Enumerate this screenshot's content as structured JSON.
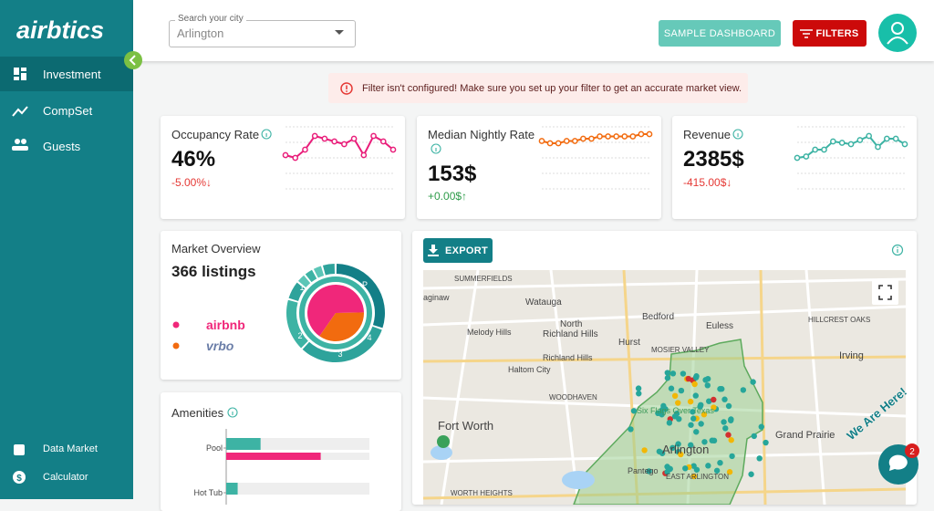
{
  "logo": "airbtics",
  "nav": [
    "Investment",
    "CompSet",
    "Guests"
  ],
  "nav_bottom": [
    "Data Market",
    "Calculator"
  ],
  "search": {
    "label": "Search your city",
    "value": "Arlington"
  },
  "buttons": {
    "sample": "SAMPLE DASHBOARD",
    "filters": "FILTERS",
    "export": "EXPORT"
  },
  "alert": "Filter isn't configured! Make sure you set up your filter to get an accurate market view.",
  "cards": [
    {
      "title": "Occupancy Rate",
      "value": "46%",
      "change": "-5.00%↓",
      "change_color": "#e53935",
      "color": "#e91e7a",
      "spark": [
        40,
        39,
        42,
        47,
        46,
        45,
        44,
        46,
        40,
        47,
        45,
        42
      ]
    },
    {
      "title": "Median Nightly Rate",
      "value": "153$",
      "change": "+0.00$↑",
      "change_color": "#2e9c4a",
      "color": "#f26b0f",
      "spark": [
        151,
        150,
        150,
        151,
        151,
        152,
        152,
        153,
        153,
        153,
        153,
        153,
        154,
        154
      ]
    },
    {
      "title": "Revenue",
      "value": "2385$",
      "change": "-415.00$↓",
      "change_color": "#e53935",
      "color": "#3db3a4",
      "spark": [
        2300,
        2310,
        2360,
        2360,
        2420,
        2410,
        2400,
        2430,
        2460,
        2380,
        2440,
        2440,
        2400
      ]
    }
  ],
  "market": {
    "title": "Market Overview",
    "listings": "366 listings",
    "ring_labels": [
      "P",
      "1",
      "2",
      "3",
      "4"
    ],
    "pie": [
      {
        "name": "airbnb",
        "color": "#f0277a",
        "value": 65
      },
      {
        "name": "vrbo",
        "color": "#f26b0f",
        "value": 35
      }
    ]
  },
  "amenities": {
    "title": "Amenities",
    "colors": [
      "#3db3a4",
      "#f0277a"
    ],
    "rows": [
      {
        "label": "Pool",
        "values": [
          24,
          66
        ]
      },
      {
        "label": "Hot Tub",
        "values": [
          8
        ]
      }
    ]
  },
  "map_labels": [
    "SUMMERFIELDS",
    "aginaw",
    "Watauga",
    "Bedford",
    "North",
    "Richland Hills",
    "Melody Hills",
    "Hurst",
    "Euless",
    "HILLCREST OAKS",
    "Richland Hills",
    "MOSIER VALLEY",
    "Irving",
    "Haltom City",
    "WOODHAVEN",
    "Six Flags Over Texas",
    "Fort Worth",
    "Arlington",
    "Grand Prairie",
    "Pantego",
    "EAST ARLINGTON",
    "WORTH HEIGHTS"
  ],
  "chat": {
    "badge": "2",
    "tag": "We Are Here!"
  }
}
